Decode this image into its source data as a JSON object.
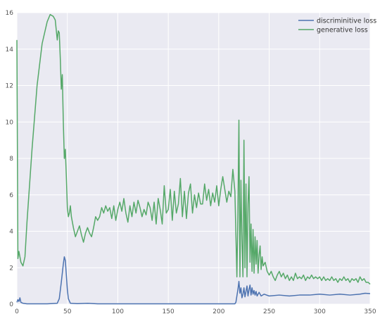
{
  "chart_data": {
    "type": "line",
    "title": "",
    "xlabel": "",
    "ylabel": "",
    "xlim": [
      0,
      350
    ],
    "ylim": [
      0,
      16
    ],
    "xticks": [
      0,
      50,
      100,
      150,
      200,
      250,
      300,
      350
    ],
    "yticks": [
      0,
      2,
      4,
      6,
      8,
      10,
      12,
      14,
      16
    ],
    "grid": true,
    "legend_position": "top-right",
    "background": "#eaeaf2",
    "series": [
      {
        "name": "discriminitive loss",
        "color": "#4c72b0",
        "points": [
          [
            0,
            0.1
          ],
          [
            1,
            0.25
          ],
          [
            2,
            0.15
          ],
          [
            3,
            0.35
          ],
          [
            4,
            0.1
          ],
          [
            6,
            0.05
          ],
          [
            10,
            0.02
          ],
          [
            30,
            0.02
          ],
          [
            40,
            0.05
          ],
          [
            42,
            0.3
          ],
          [
            44,
            1.2
          ],
          [
            46,
            2.2
          ],
          [
            47,
            2.6
          ],
          [
            48,
            2.4
          ],
          [
            49,
            1.6
          ],
          [
            50,
            0.8
          ],
          [
            51,
            0.3
          ],
          [
            53,
            0.05
          ],
          [
            60,
            0.03
          ],
          [
            70,
            0.05
          ],
          [
            80,
            0.02
          ],
          [
            100,
            0.02
          ],
          [
            150,
            0.02
          ],
          [
            200,
            0.02
          ],
          [
            216,
            0.02
          ],
          [
            217,
            0.1
          ],
          [
            218,
            0.45
          ],
          [
            219,
            0.8
          ],
          [
            220,
            1.25
          ],
          [
            221,
            0.6
          ],
          [
            222,
            0.9
          ],
          [
            223,
            0.35
          ],
          [
            224,
            0.55
          ],
          [
            225,
            0.9
          ],
          [
            226,
            0.4
          ],
          [
            227,
            0.7
          ],
          [
            228,
            1.0
          ],
          [
            229,
            0.45
          ],
          [
            230,
            0.8
          ],
          [
            231,
            1.05
          ],
          [
            232,
            0.5
          ],
          [
            233,
            0.9
          ],
          [
            234,
            0.55
          ],
          [
            235,
            0.75
          ],
          [
            236,
            0.5
          ],
          [
            237,
            0.7
          ],
          [
            238,
            0.45
          ],
          [
            240,
            0.65
          ],
          [
            242,
            0.45
          ],
          [
            245,
            0.55
          ],
          [
            250,
            0.45
          ],
          [
            260,
            0.5
          ],
          [
            270,
            0.45
          ],
          [
            280,
            0.5
          ],
          [
            290,
            0.5
          ],
          [
            300,
            0.55
          ],
          [
            310,
            0.5
          ],
          [
            320,
            0.55
          ],
          [
            330,
            0.5
          ],
          [
            340,
            0.55
          ],
          [
            345,
            0.6
          ],
          [
            350,
            0.58
          ]
        ]
      },
      {
        "name": "generative loss",
        "color": "#55a868",
        "points": [
          [
            0,
            14.5
          ],
          [
            1,
            2.5
          ],
          [
            2,
            2.9
          ],
          [
            3,
            2.6
          ],
          [
            4,
            2.3
          ],
          [
            6,
            2.1
          ],
          [
            8,
            2.6
          ],
          [
            10,
            4.5
          ],
          [
            15,
            8.5
          ],
          [
            20,
            12.0
          ],
          [
            25,
            14.3
          ],
          [
            30,
            15.5
          ],
          [
            33,
            15.9
          ],
          [
            36,
            15.8
          ],
          [
            38,
            15.6
          ],
          [
            40,
            14.5
          ],
          [
            41,
            15.0
          ],
          [
            42,
            14.9
          ],
          [
            43,
            13.5
          ],
          [
            44,
            11.8
          ],
          [
            45,
            12.6
          ],
          [
            46,
            10.0
          ],
          [
            47,
            8.0
          ],
          [
            48,
            8.5
          ],
          [
            49,
            7.0
          ],
          [
            50,
            5.3
          ],
          [
            51,
            4.8
          ],
          [
            52,
            5.0
          ],
          [
            53,
            5.4
          ],
          [
            54,
            4.8
          ],
          [
            55,
            4.5
          ],
          [
            56,
            4.2
          ],
          [
            58,
            3.7
          ],
          [
            60,
            4.0
          ],
          [
            62,
            4.3
          ],
          [
            64,
            3.8
          ],
          [
            66,
            3.4
          ],
          [
            68,
            3.9
          ],
          [
            70,
            4.2
          ],
          [
            72,
            3.9
          ],
          [
            74,
            3.7
          ],
          [
            76,
            4.2
          ],
          [
            78,
            4.8
          ],
          [
            80,
            4.6
          ],
          [
            82,
            4.8
          ],
          [
            84,
            5.3
          ],
          [
            86,
            5.0
          ],
          [
            88,
            5.4
          ],
          [
            90,
            5.1
          ],
          [
            92,
            5.3
          ],
          [
            94,
            4.7
          ],
          [
            96,
            5.4
          ],
          [
            98,
            4.6
          ],
          [
            100,
            5.2
          ],
          [
            102,
            5.6
          ],
          [
            104,
            5.1
          ],
          [
            106,
            5.8
          ],
          [
            108,
            5.0
          ],
          [
            110,
            4.5
          ],
          [
            112,
            5.4
          ],
          [
            114,
            4.8
          ],
          [
            116,
            5.6
          ],
          [
            118,
            5.0
          ],
          [
            120,
            5.7
          ],
          [
            122,
            5.3
          ],
          [
            124,
            4.8
          ],
          [
            126,
            5.2
          ],
          [
            128,
            4.9
          ],
          [
            130,
            5.6
          ],
          [
            132,
            5.3
          ],
          [
            134,
            4.6
          ],
          [
            136,
            5.6
          ],
          [
            138,
            4.4
          ],
          [
            140,
            5.8
          ],
          [
            142,
            5.2
          ],
          [
            144,
            4.4
          ],
          [
            146,
            6.5
          ],
          [
            148,
            5.0
          ],
          [
            150,
            5.2
          ],
          [
            152,
            6.3
          ],
          [
            154,
            4.6
          ],
          [
            156,
            6.2
          ],
          [
            158,
            5.0
          ],
          [
            160,
            5.5
          ],
          [
            162,
            6.9
          ],
          [
            164,
            4.8
          ],
          [
            166,
            6.2
          ],
          [
            168,
            4.7
          ],
          [
            170,
            6.1
          ],
          [
            172,
            6.6
          ],
          [
            174,
            5.0
          ],
          [
            176,
            6.0
          ],
          [
            178,
            5.3
          ],
          [
            180,
            6.1
          ],
          [
            182,
            5.5
          ],
          [
            184,
            5.5
          ],
          [
            186,
            6.6
          ],
          [
            188,
            5.7
          ],
          [
            190,
            6.3
          ],
          [
            192,
            5.4
          ],
          [
            194,
            6.1
          ],
          [
            196,
            5.6
          ],
          [
            198,
            6.5
          ],
          [
            200,
            5.4
          ],
          [
            202,
            6.3
          ],
          [
            204,
            7.0
          ],
          [
            206,
            6.3
          ],
          [
            208,
            5.6
          ],
          [
            210,
            6.2
          ],
          [
            212,
            5.9
          ],
          [
            214,
            7.4
          ],
          [
            216,
            6.2
          ],
          [
            218,
            1.5
          ],
          [
            219,
            5.0
          ],
          [
            220,
            10.1
          ],
          [
            221,
            1.5
          ],
          [
            222,
            6.8
          ],
          [
            223,
            3.5
          ],
          [
            224,
            1.5
          ],
          [
            225,
            9.0
          ],
          [
            226,
            2.0
          ],
          [
            227,
            6.6
          ],
          [
            228,
            1.5
          ],
          [
            229,
            5.5
          ],
          [
            230,
            7.0
          ],
          [
            231,
            2.3
          ],
          [
            232,
            4.4
          ],
          [
            233,
            1.8
          ],
          [
            234,
            4.1
          ],
          [
            235,
            1.7
          ],
          [
            236,
            3.7
          ],
          [
            237,
            2.2
          ],
          [
            238,
            3.5
          ],
          [
            239,
            1.7
          ],
          [
            240,
            2.7
          ],
          [
            241,
            3.2
          ],
          [
            242,
            1.9
          ],
          [
            243,
            2.6
          ],
          [
            244,
            2.1
          ],
          [
            246,
            2.3
          ],
          [
            248,
            1.8
          ],
          [
            250,
            1.6
          ],
          [
            252,
            1.8
          ],
          [
            254,
            1.5
          ],
          [
            256,
            1.3
          ],
          [
            258,
            1.6
          ],
          [
            260,
            1.8
          ],
          [
            262,
            1.5
          ],
          [
            264,
            1.7
          ],
          [
            266,
            1.4
          ],
          [
            268,
            1.6
          ],
          [
            270,
            1.3
          ],
          [
            272,
            1.5
          ],
          [
            274,
            1.3
          ],
          [
            276,
            1.7
          ],
          [
            278,
            1.4
          ],
          [
            280,
            1.5
          ],
          [
            282,
            1.4
          ],
          [
            284,
            1.6
          ],
          [
            286,
            1.3
          ],
          [
            288,
            1.5
          ],
          [
            290,
            1.4
          ],
          [
            292,
            1.6
          ],
          [
            294,
            1.4
          ],
          [
            296,
            1.5
          ],
          [
            298,
            1.4
          ],
          [
            300,
            1.5
          ],
          [
            302,
            1.3
          ],
          [
            304,
            1.5
          ],
          [
            306,
            1.3
          ],
          [
            308,
            1.4
          ],
          [
            310,
            1.3
          ],
          [
            312,
            1.5
          ],
          [
            314,
            1.3
          ],
          [
            316,
            1.4
          ],
          [
            318,
            1.2
          ],
          [
            320,
            1.4
          ],
          [
            322,
            1.3
          ],
          [
            324,
            1.5
          ],
          [
            326,
            1.3
          ],
          [
            328,
            1.4
          ],
          [
            330,
            1.2
          ],
          [
            332,
            1.4
          ],
          [
            334,
            1.3
          ],
          [
            336,
            1.4
          ],
          [
            338,
            1.2
          ],
          [
            340,
            1.5
          ],
          [
            342,
            1.3
          ],
          [
            344,
            1.4
          ],
          [
            346,
            1.2
          ],
          [
            348,
            1.2
          ],
          [
            350,
            1.1
          ]
        ]
      }
    ]
  }
}
